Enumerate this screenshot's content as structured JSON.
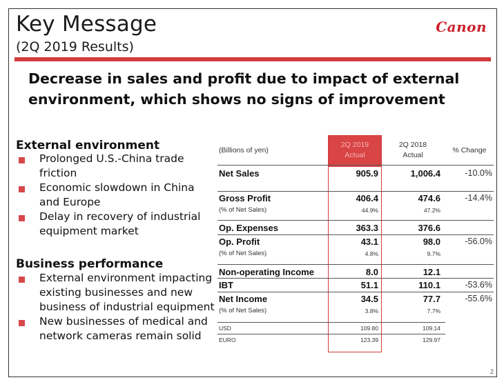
{
  "header": {
    "title": "Key Message",
    "subtitle": "(2Q 2019 Results)",
    "logo": "Canon"
  },
  "headline": "Decrease in sales and profit due to impact of external environment, which shows no signs of improvement",
  "external": {
    "title": "External environment",
    "bullets": [
      [
        "Prolonged U.S.-China trade",
        "friction"
      ],
      [
        "Economic slowdown in China",
        "and Europe"
      ],
      [
        "Delay in recovery of industrial",
        "equipment market"
      ]
    ]
  },
  "business": {
    "title": "Business performance",
    "bullets": [
      [
        "External environment impacting",
        "existing businesses and new",
        "business of industrial equipment"
      ],
      [
        "New businesses of medical and",
        "network cameras remain solid"
      ]
    ]
  },
  "table": {
    "unit": "(Billions of yen)",
    "col_2019": [
      "2Q 2019",
      "Actual"
    ],
    "col_2018": [
      "2Q 2018",
      "Actual"
    ],
    "col_change": "% Change",
    "net_sales": {
      "label": "Net Sales",
      "v19": "905.9",
      "v18": "1,006.4",
      "pct": "-10.0%"
    },
    "gross_profit": {
      "label": "Gross Profit",
      "v19": "406.4",
      "v18": "474.6",
      "pct": "-14.4%"
    },
    "gp_ratio": {
      "label": "(% of Net Sales)",
      "v19": "44.9%",
      "v18": "47.2%"
    },
    "op_expenses": {
      "label": "Op. Expenses",
      "v19": "363.3",
      "v18": "376.6"
    },
    "op_profit": {
      "label": "Op. Profit",
      "v19": "43.1",
      "v18": "98.0",
      "pct": "-56.0%"
    },
    "op_ratio": {
      "label": "(% of Net Sales)",
      "v19": "4.8%",
      "v18": "9.7%"
    },
    "non_op": {
      "label": "Non-operating Income",
      "v19": "8.0",
      "v18": "12.1"
    },
    "ibt": {
      "label": "IBT",
      "v19": "51.1",
      "v18": "110.1",
      "pct": "-53.6%"
    },
    "net_income": {
      "label": "Net Income",
      "v19": "34.5",
      "v18": "77.7",
      "pct": "-55.6%"
    },
    "ni_ratio": {
      "label": "(% of Net Sales)",
      "v19": "3.8%",
      "v18": "7.7%"
    },
    "usd": {
      "label": "USD",
      "v19": "109.80",
      "v18": "109.14"
    },
    "euro": {
      "label": "EURO",
      "v19": "123.39",
      "v18": "129.97"
    }
  },
  "page_number": "2",
  "colors": {
    "accent": "#d23b3b",
    "logo": "#cc1f2a"
  }
}
